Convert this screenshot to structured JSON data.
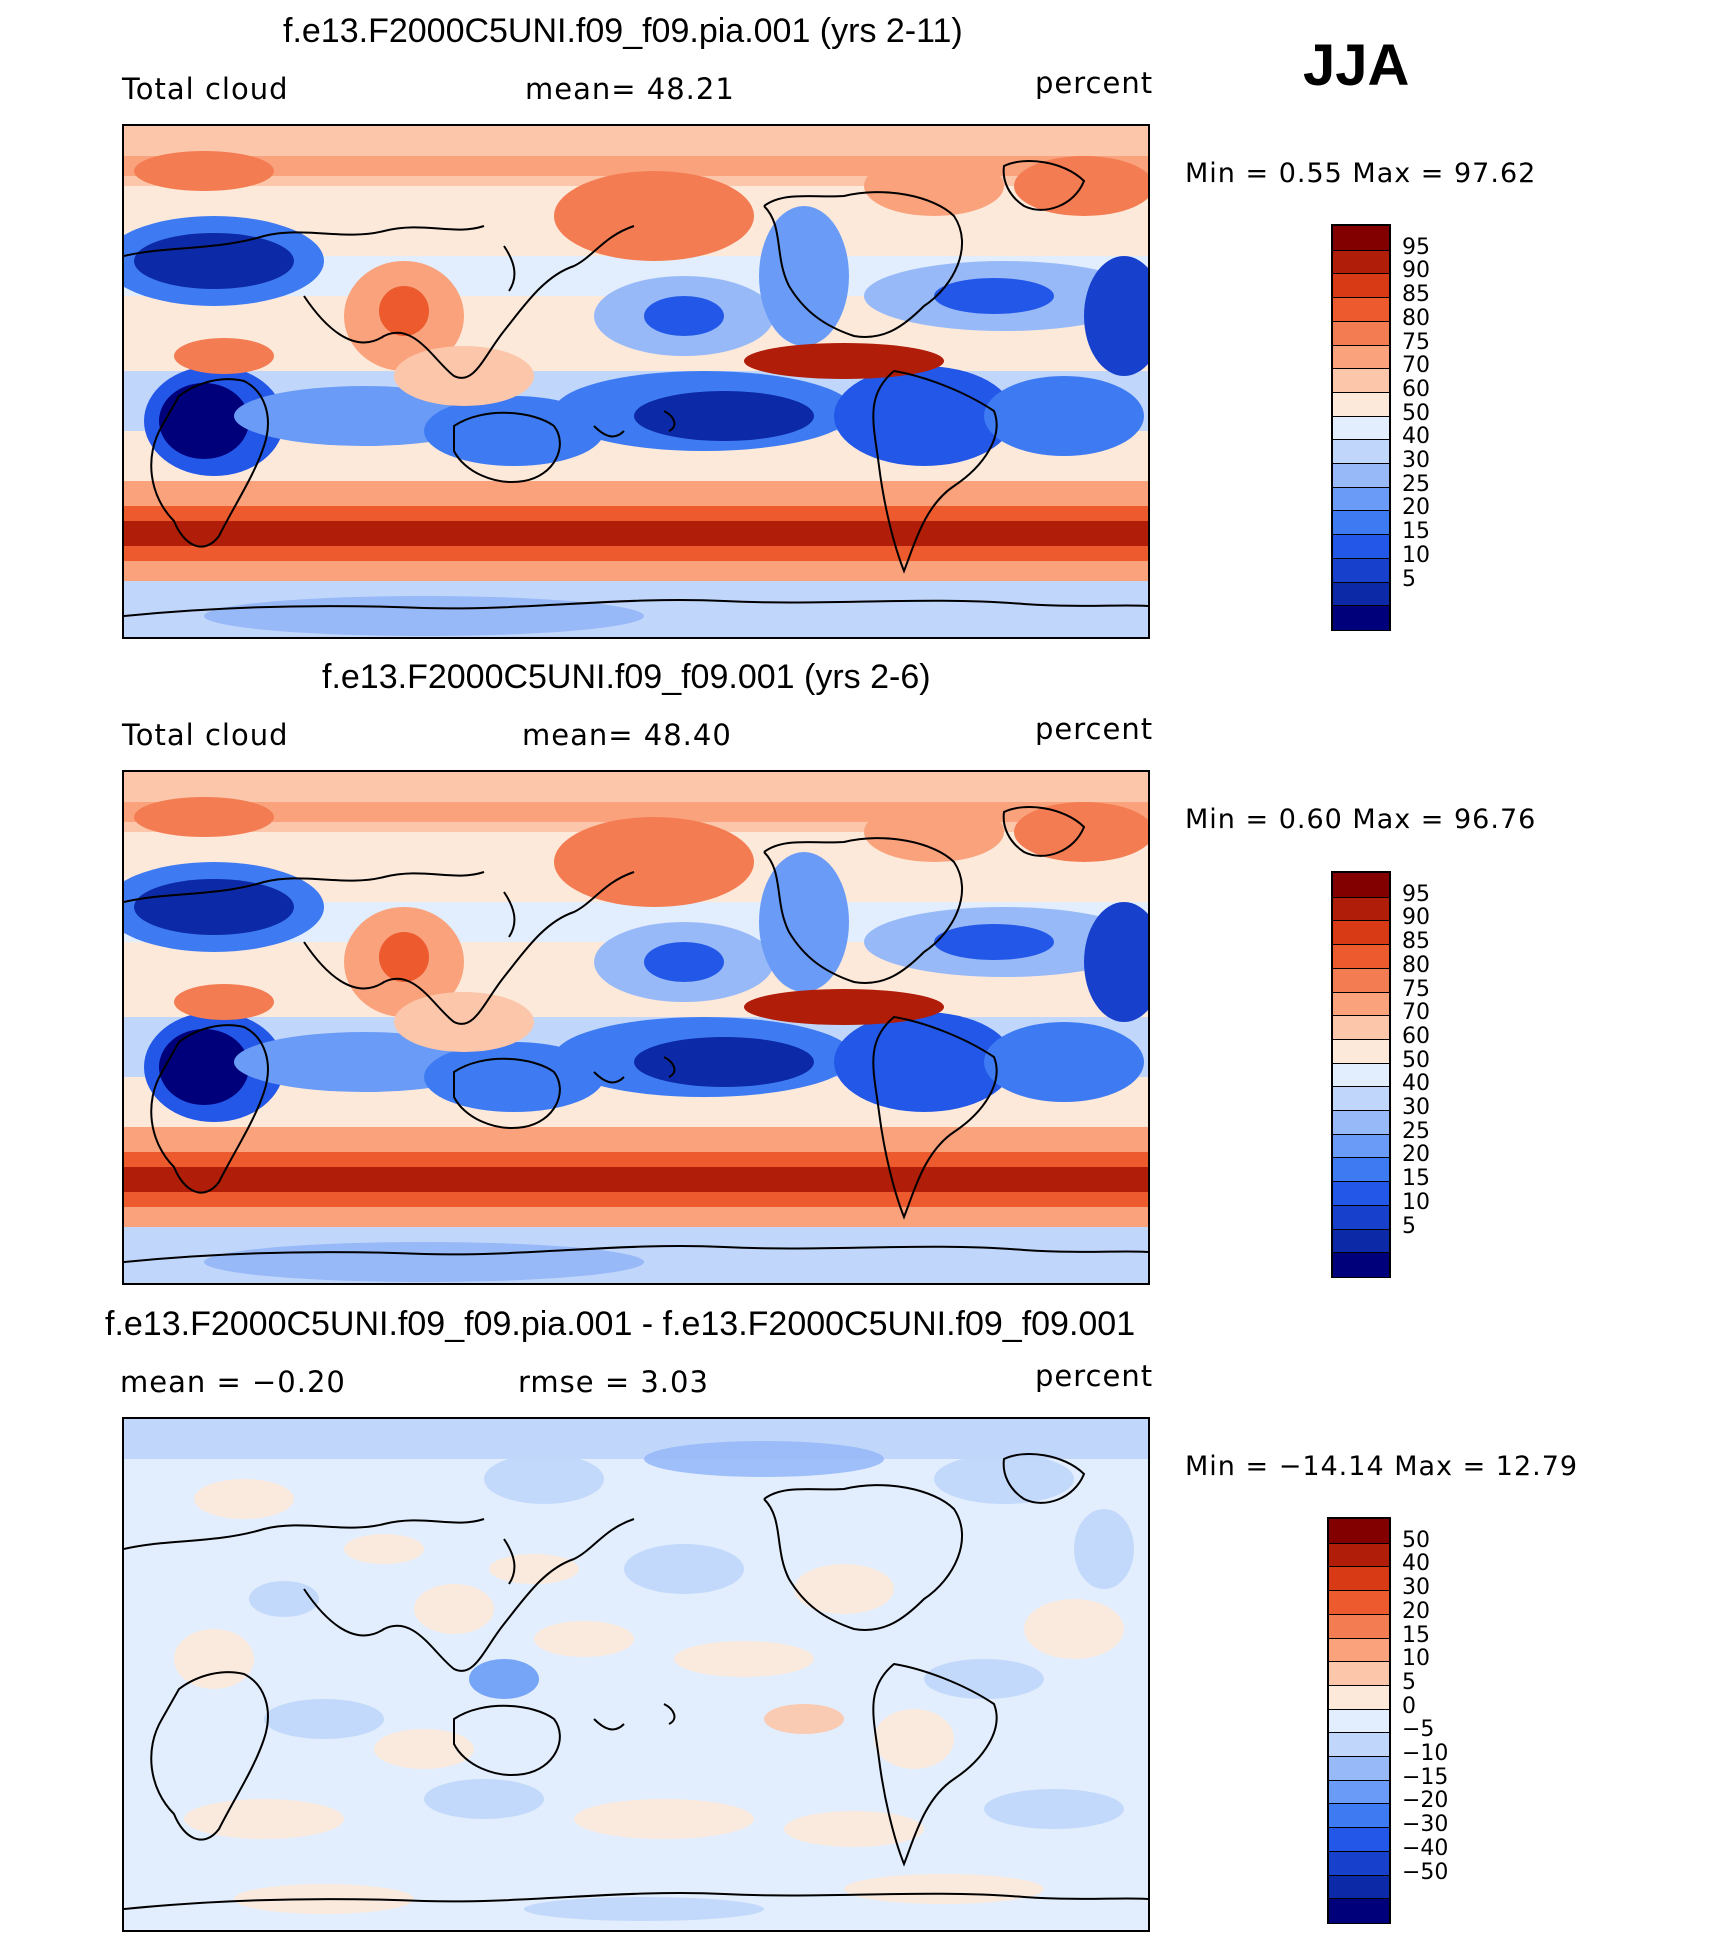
{
  "season": "JJA",
  "palette": {
    "base": [
      "#00007a",
      "#0c2aa8",
      "#1740cc",
      "#2357e8",
      "#3e7bf2",
      "#6a9bf6",
      "#97b9f8",
      "#c0d6fb",
      "#e2eefd",
      "#fde9da",
      "#fcc6aa",
      "#f9a27c",
      "#f47c52",
      "#ec5a2e",
      "#d73a15",
      "#b01d09",
      "#830000"
    ],
    "diff": [
      "#00007a",
      "#0c2aa8",
      "#1740cc",
      "#2357e8",
      "#3e7bf2",
      "#6a9bf6",
      "#97b9f8",
      "#c0d6fb",
      "#e2eefd",
      "#fde9da",
      "#fcc6aa",
      "#f9a27c",
      "#f47c52",
      "#ec5a2e",
      "#d73a15",
      "#b01d09",
      "#830000"
    ]
  },
  "panels": [
    {
      "title": "f.e13.F2000C5UNI.f09_f09.pia.001 (yrs 2-11)",
      "left_label": "Total cloud",
      "mid_label": "mean=   48.21",
      "right_label": "percent",
      "minmax": "Min =     0.55  Max =    97.62",
      "colorbar_labels": [
        "95",
        "90",
        "85",
        "80",
        "75",
        "70",
        "60",
        "50",
        "40",
        "30",
        "25",
        "20",
        "15",
        "10",
        "5"
      ],
      "map_variant": "model"
    },
    {
      "title": "f.e13.F2000C5UNI.f09_f09.001 (yrs 2-6)",
      "left_label": "Total cloud",
      "mid_label": "mean=   48.40",
      "right_label": "percent",
      "minmax": "Min =     0.60  Max =    96.76",
      "colorbar_labels": [
        "95",
        "90",
        "85",
        "80",
        "75",
        "70",
        "60",
        "50",
        "40",
        "30",
        "25",
        "20",
        "15",
        "10",
        "5"
      ],
      "map_variant": "model"
    },
    {
      "title": "f.e13.F2000C5UNI.f09_f09.pia.001 - f.e13.F2000C5UNI.f09_f09.001",
      "left_label": "mean  =   −0.20",
      "mid_label": "rmse  =     3.03",
      "right_label": "percent",
      "minmax": "Min = −14.14  Max =    12.79",
      "colorbar_labels": [
        "50",
        "40",
        "30",
        "20",
        "15",
        "10",
        "5",
        "0",
        "−5",
        "−10",
        "−15",
        "−20",
        "−30",
        "−40",
        "−50"
      ],
      "map_variant": "diff"
    }
  ]
}
